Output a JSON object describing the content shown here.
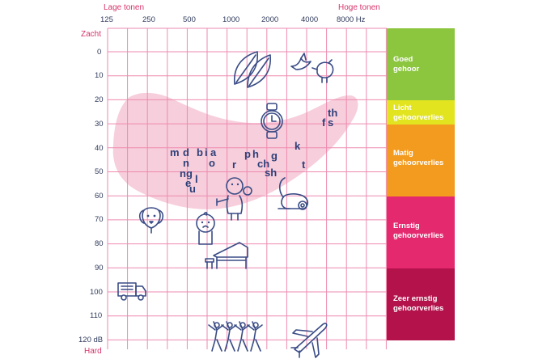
{
  "header": {
    "low_tones": "Lage tonen",
    "high_tones": "Hoge tonen"
  },
  "frequencies": [
    "125",
    "250",
    "500",
    "1000",
    "2000",
    "4000",
    "8000 Hz"
  ],
  "levels": [
    "0",
    "10",
    "20",
    "30",
    "40",
    "50",
    "60",
    "70",
    "80",
    "90",
    "100",
    "110",
    "120 dB"
  ],
  "left_labels": {
    "top": "Zacht",
    "bottom": "Hard"
  },
  "phonemes": [
    {
      "t": "m"
    },
    {
      "t": "d"
    },
    {
      "t": "b"
    },
    {
      "t": "i"
    },
    {
      "t": "a"
    },
    {
      "t": "n"
    },
    {
      "t": "o"
    },
    {
      "t": "ng"
    },
    {
      "t": "e"
    },
    {
      "t": "l"
    },
    {
      "t": "u"
    },
    {
      "t": "p"
    },
    {
      "t": "h"
    },
    {
      "t": "g"
    },
    {
      "t": "r"
    },
    {
      "t": "ch"
    },
    {
      "t": "sh"
    },
    {
      "t": "k"
    },
    {
      "t": "t"
    },
    {
      "t": "f"
    },
    {
      "t": "s"
    },
    {
      "t": "th"
    }
  ],
  "bands": [
    {
      "label1": "Goed",
      "label2": "gehoor",
      "color": "#8cc63f"
    },
    {
      "label1": "Licht",
      "label2": "gehoorverlies",
      "color": "#e2e41f"
    },
    {
      "label1": "Matig",
      "label2": "gehoorverlies",
      "color": "#f39b1f"
    },
    {
      "label1": "Ernstig",
      "label2": "gehoorverlies",
      "color": "#e5296f"
    },
    {
      "label1": "Zeer ernstig",
      "label2": "gehoorverlies",
      "color": "#b3124a"
    }
  ],
  "colors": {
    "grid": "#ee8ab0",
    "speech_banana": "#f6c6d5",
    "accent_text": "#d6336c",
    "icon_stroke": "#3a4c86"
  },
  "icons": [
    "leaves-icon",
    "birds-icon",
    "watch-icon",
    "dog-icon",
    "baby-icon",
    "person-talking-icon",
    "vacuum-cleaner-icon",
    "piano-icon",
    "truck-icon",
    "chainsaw-cheerleaders-icon",
    "airplane-icon"
  ]
}
